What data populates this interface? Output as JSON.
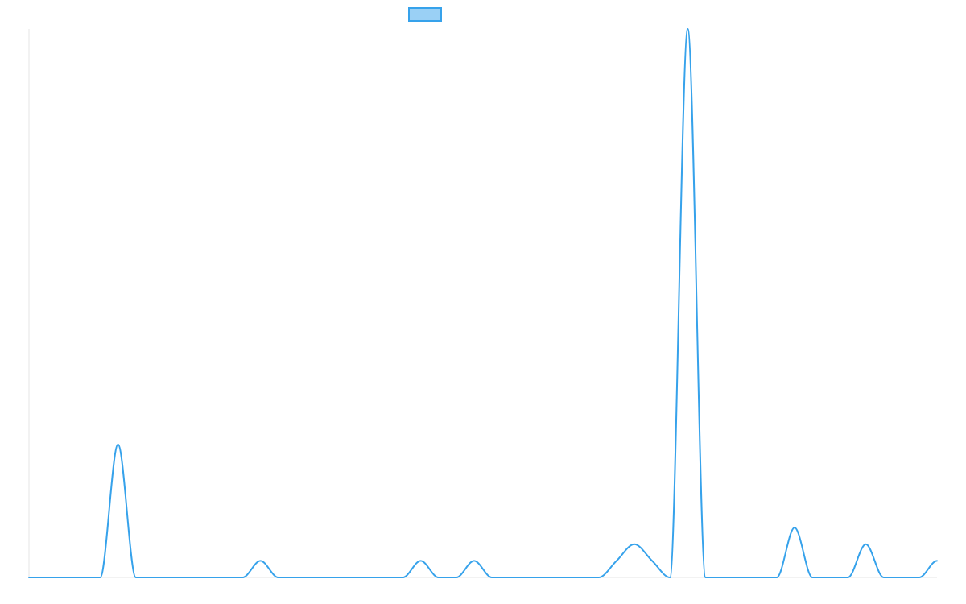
{
  "chart_data": {
    "type": "line",
    "title": "",
    "xlabel": "",
    "ylabel": "",
    "x": [
      0,
      1,
      2,
      3,
      4,
      5,
      6,
      7,
      8,
      9,
      10,
      11,
      12,
      13,
      14,
      15,
      16,
      17,
      18,
      19,
      20,
      21,
      22,
      23,
      24,
      25,
      26,
      27,
      28,
      29,
      30,
      31,
      32,
      33,
      34,
      35,
      36,
      37,
      38,
      39,
      40,
      41,
      42,
      43,
      44,
      45,
      46,
      47,
      48,
      49,
      50,
      51
    ],
    "series": [
      {
        "name": "",
        "color": "#36A2EB",
        "fill": "#9AD0F5",
        "values": [
          0,
          0,
          0,
          0,
          0,
          8,
          0,
          0,
          0,
          0,
          0,
          0,
          0,
          1,
          0,
          0,
          0,
          0,
          0,
          0,
          0,
          0,
          1,
          0,
          0,
          1,
          0,
          0,
          0,
          0,
          0,
          0,
          0,
          1,
          2,
          1,
          0,
          33,
          0,
          0,
          0,
          0,
          0,
          3,
          0,
          0,
          0,
          2,
          0,
          0,
          0,
          1
        ]
      }
    ],
    "ylim": [
      0,
      33
    ],
    "grid": false,
    "legend": "top-center",
    "colors": {
      "line": "#36A2EB",
      "legend_fill": "#9AD0F5",
      "axis": "#e5e5e5"
    }
  }
}
